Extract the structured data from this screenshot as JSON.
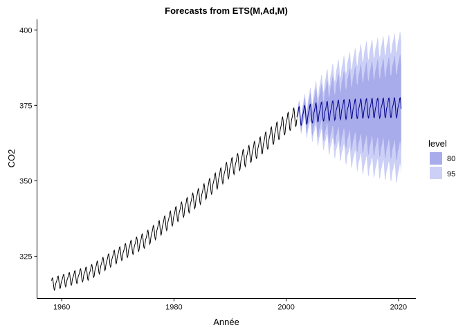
{
  "chart_data": {
    "type": "line",
    "title": "Forecasts from ETS(M,Ad,M)",
    "xlabel": "Année",
    "ylabel": "CO2",
    "xlim": [
      1955.6,
      2023.1
    ],
    "ylim": [
      311.0,
      403.5
    ],
    "x_ticks": [
      1960,
      1980,
      2000,
      2020
    ],
    "y_ticks": [
      325,
      350,
      375,
      400
    ],
    "grid": false,
    "legend": {
      "title": "level",
      "position": "right",
      "entries": [
        {
          "label": "80",
          "color": "#a9acea"
        },
        {
          "label": "95",
          "color": "#ccd0f6"
        }
      ]
    },
    "series": [
      {
        "role": "observed",
        "color": "#000000",
        "x_start": 1958.2,
        "x_end": 2001.9,
        "trend": [
          [
            1958.2,
            315.6
          ],
          [
            1965,
            319.5
          ],
          [
            1970,
            325.3
          ],
          [
            1975,
            330.5
          ],
          [
            1980,
            338.2
          ],
          [
            1985,
            345.5
          ],
          [
            1990,
            354.2
          ],
          [
            1995,
            360.8
          ],
          [
            2000,
            368.9
          ],
          [
            2001.9,
            371.5
          ]
        ],
        "seasonal_amplitude": [
          [
            1958.2,
            2.1
          ],
          [
            2001.9,
            3.3
          ]
        ]
      },
      {
        "role": "forecast",
        "color": "#00008b",
        "x_start": 2001.9,
        "x_end": 2020.5,
        "trend": [
          [
            2001.9,
            371.2
          ],
          [
            2006,
            372.8
          ],
          [
            2010,
            373.6
          ],
          [
            2015,
            374.0
          ],
          [
            2020.5,
            374.2
          ]
        ],
        "seasonal_amplitude": [
          [
            2001.9,
            3.2
          ],
          [
            2020.5,
            3.3
          ]
        ],
        "interval_80_halfwidth": [
          [
            2001.9,
            1.0
          ],
          [
            2008,
            8.0
          ],
          [
            2014,
            12.0
          ],
          [
            2020.5,
            14.5
          ]
        ],
        "interval_95_halfwidth": [
          [
            2001.9,
            1.5
          ],
          [
            2008,
            12.0
          ],
          [
            2014,
            19.0
          ],
          [
            2020.5,
            22.0
          ]
        ]
      }
    ]
  }
}
